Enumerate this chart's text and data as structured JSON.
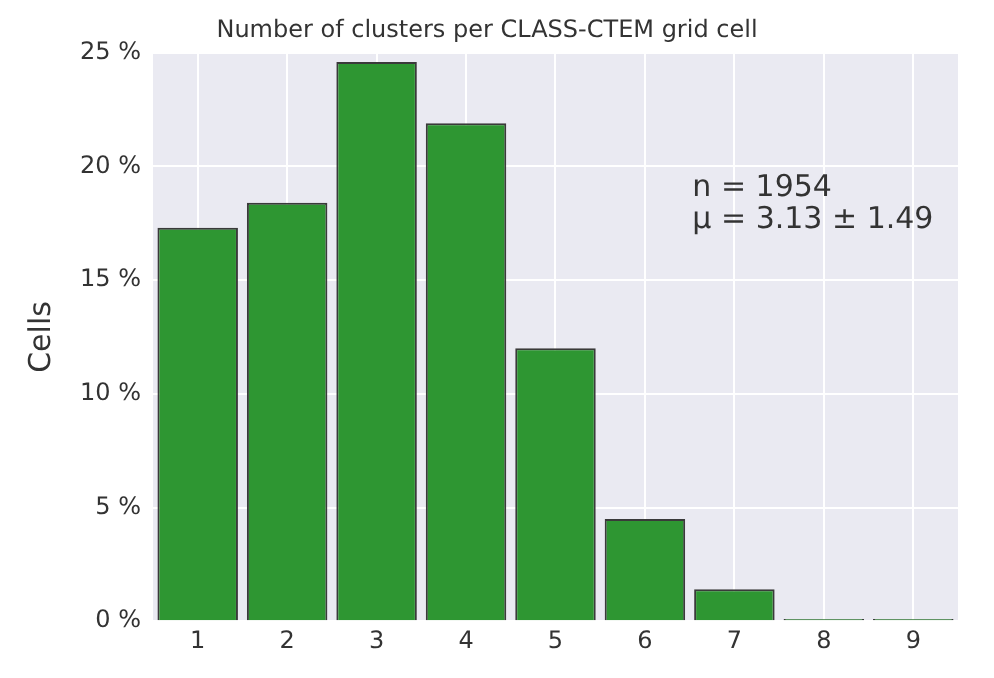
{
  "chart_data": {
    "type": "bar",
    "title": "Number of clusters per CLASS-CTEM grid cell",
    "ylabel": "Cells",
    "categories": [
      "1",
      "2",
      "3",
      "4",
      "5",
      "6",
      "7",
      "8",
      "9"
    ],
    "values": [
      17.3,
      18.4,
      24.6,
      21.9,
      12.0,
      4.5,
      1.4,
      0.1,
      0.1
    ],
    "color": "#2e9632",
    "ylim": [
      0,
      25
    ],
    "yticks": [
      {
        "value": 0,
        "label": "0 %"
      },
      {
        "value": 5,
        "label": "5 %"
      },
      {
        "value": 10,
        "label": "10 %"
      },
      {
        "value": 15,
        "label": "15 %"
      },
      {
        "value": 20,
        "label": "20 %"
      },
      {
        "value": 25,
        "label": "25 %"
      }
    ],
    "annotations": [
      "n = 1954",
      "μ = 3.13 ± 1.49"
    ],
    "grid": true
  }
}
